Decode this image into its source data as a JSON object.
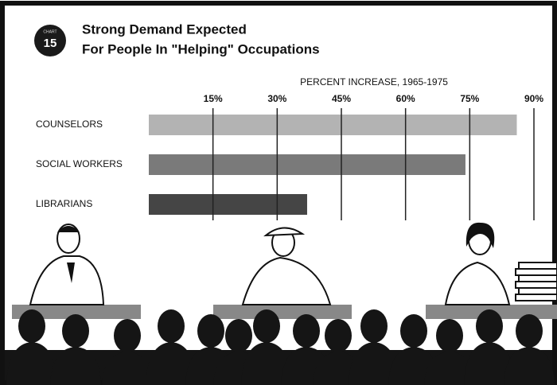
{
  "chart_data": {
    "type": "bar",
    "orientation": "horizontal",
    "badge_label": "CHART",
    "badge_number": "15",
    "title": "Strong Demand Expected",
    "subtitle": "For People In \"Helping\" Occupations",
    "x_label": "PERCENT INCREASE, 1965-1975",
    "categories": [
      "COUNSELORS",
      "SOCIAL WORKERS",
      "LIBRARIANS"
    ],
    "values": [
      86,
      74,
      37
    ],
    "colors": [
      "#b3b3b3",
      "#7a7a7a",
      "#454545"
    ],
    "xlim": [
      0,
      90
    ],
    "xticks": [
      {
        "value": 15,
        "label": "15%"
      },
      {
        "value": 30,
        "label": "30%"
      },
      {
        "value": 45,
        "label": "45%"
      },
      {
        "value": 60,
        "label": "60%"
      },
      {
        "value": 75,
        "label": "75%"
      },
      {
        "value": 90,
        "label": "90%"
      }
    ],
    "grid": true
  }
}
